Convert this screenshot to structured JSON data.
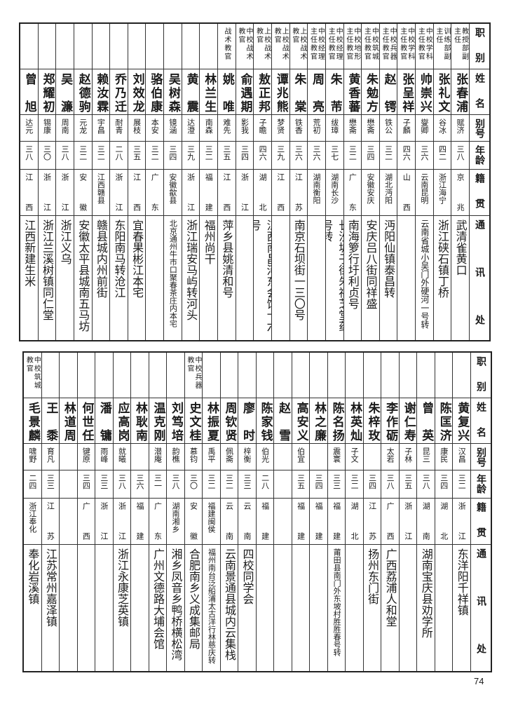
{
  "headers": {
    "role": "职别",
    "name": "姓名",
    "alias": "别号",
    "age": "年龄",
    "native": "籍贯",
    "address": "通讯处"
  },
  "page_number": "74",
  "top_table": [
    {
      "role": "教授部副主任",
      "name": "张春浦",
      "alias": "赋济",
      "age": "三八",
      "native": "京兆",
      "address": "武清雀黄口"
    },
    {
      "role": "训练部副主任",
      "name": "张礼文",
      "alias": "谷冰",
      "age": "四二",
      "native": "浙江海宁",
      "address": "浙江硖石镇丁桥"
    },
    {
      "role": "中校学科主任教官",
      "name": "帅崇兴",
      "alias": "燮卿",
      "age": "三六",
      "native": "云南昆明",
      "address": "云南省城小吴门外硬河一号转"
    },
    {
      "role": "中校学科主任教官",
      "name": "张呈祥",
      "alias": "子麟",
      "age": "四六",
      "native": "山西",
      "address": ""
    },
    {
      "role": "中校兵器主任教官",
      "name": "赵锷",
      "alias": "铁公",
      "age": "三二",
      "native": "湖北沔阳",
      "address": "沔阳仙镇泰昌转"
    },
    {
      "role": "中校筑城主任教官",
      "name": "朱勉方",
      "alias": "懋斋",
      "age": "三四",
      "native": "安徽安庆",
      "address": "安庆吕八街同祥盛"
    },
    {
      "role": "中校地形主任教官",
      "name": "黄香蕃",
      "alias": "懋斋",
      "age": "三二",
      "native": "广东",
      "address": "南海箩行圩利贞号"
    },
    {
      "role": "中校经理主任教官",
      "name": "朱芾",
      "alias": "绂璋",
      "age": "三七",
      "native": "湖南长沙",
      "address": "长沙坡子街朱福芝堂药号转"
    },
    {
      "role": "中校经理主任教官",
      "name": "周亮",
      "alias": "荒初",
      "age": "三六",
      "native": "湖南衡阳",
      "address": ""
    },
    {
      "role": "上校战术教官",
      "name": "朱棠",
      "alias": "铁香",
      "age": "三六",
      "native": "江苏",
      "address": "南京石坝街一三〇号"
    },
    {
      "role": "上校战术教官",
      "name": "谭兆熊",
      "alias": "梦贤",
      "age": "三九",
      "native": "江西",
      "address": ""
    },
    {
      "role": "上校战术教官",
      "name": "敖正邦",
      "alias": "子瞻",
      "age": "四六",
      "native": "湖北",
      "address": "江西南昌河东会馆十六号"
    },
    {
      "role": "中校战术教官",
      "name": "俞遇期",
      "alias": "影我",
      "age": "三四",
      "native": "浙江",
      "address": ""
    },
    {
      "role": "战术教官",
      "name": "姚唯",
      "alias": "难先",
      "age": "三五",
      "native": "江西",
      "address": "萍乡县姚清和号"
    },
    {
      "role": "",
      "name": "林兰生",
      "alias": "南森",
      "age": "三二",
      "native": "福建",
      "address": "福州尚干"
    },
    {
      "role": "",
      "name": "黄震",
      "alias": "达澄",
      "age": "三九",
      "native": "浙江",
      "address": "浙江瑞安马屿转河头"
    },
    {
      "role": "",
      "name": "吴树森",
      "alias": "镜涵",
      "age": "三四",
      "native": "安徽歙县",
      "address": "北京通州牛市口聚春茶庄内本宅"
    },
    {
      "role": "",
      "name": "骆伯康",
      "alias": "本安",
      "age": "三二",
      "native": "广东",
      "address": ""
    },
    {
      "role": "",
      "name": "刘效龙",
      "alias": "展枝",
      "age": "三五",
      "native": "江西",
      "address": "宜春果彬江本宅"
    },
    {
      "role": "",
      "name": "乔乃迁",
      "alias": "耐青",
      "age": "二八",
      "native": "浙江",
      "address": "东阳南马转沧江"
    },
    {
      "role": "",
      "name": "赖汝霖",
      "alias": "宇昌",
      "age": "三二",
      "native": "江西赣县",
      "address": "赣县城内州前街"
    },
    {
      "role": "",
      "name": "赵德驹",
      "alias": "元龙",
      "age": "三二",
      "native": "安徽",
      "address": "安徽太平县城南五马坊"
    },
    {
      "role": "",
      "name": "吴濂",
      "alias": "周南",
      "age": "三八",
      "native": "浙江",
      "address": "浙江义乌"
    },
    {
      "role": "",
      "name": "郑耀初",
      "alias": "锡康",
      "age": "三〇",
      "native": "浙江",
      "address": "浙江兰溪树镇同仁堂"
    },
    {
      "role": "",
      "name": "曾旭",
      "alias": "达元",
      "age": "三八",
      "native": "江西",
      "address": "江西新建生米"
    }
  ],
  "bottom_table": [
    {
      "role": "",
      "name": "黄复兴",
      "alias": "汉昌",
      "age": "三二",
      "native": "浙江",
      "address": "东洋阳千祥镇"
    },
    {
      "role": "",
      "name": "陈匡济",
      "alias": "康民",
      "age": "三四",
      "native": "湖北",
      "address": ""
    },
    {
      "role": "",
      "name": "曾英",
      "alias": "昆三",
      "age": "三八",
      "native": "湖南",
      "address": "湖南宝庆县劝学所"
    },
    {
      "role": "",
      "name": "谢仁寿",
      "alias": "子林",
      "age": "三五",
      "native": "浙江",
      "address": ""
    },
    {
      "role": "",
      "name": "李作砺",
      "alias": "太若",
      "age": "三八",
      "native": "广西",
      "address": "广西荔浦人和堂"
    },
    {
      "role": "",
      "name": "朱梓玫",
      "alias": "",
      "age": "三四",
      "native": "江苏",
      "address": "扬州东门街"
    },
    {
      "role": "",
      "name": "林英灿",
      "alias": "子文",
      "age": "三二",
      "native": "湖北",
      "address": ""
    },
    {
      "role": "",
      "name": "陈名扬",
      "alias": "震寰",
      "age": "三三",
      "native": "福建",
      "address": "莆田县南门外东坡村胜胜春号转"
    },
    {
      "role": "",
      "name": "林之廉",
      "alias": "",
      "age": "三四",
      "native": "福建",
      "address": ""
    },
    {
      "role": "",
      "name": "高安义",
      "alias": "伯宜",
      "age": "三五",
      "native": "福建",
      "address": ""
    },
    {
      "role": "",
      "name": "赵雪",
      "alias": "",
      "age": "",
      "native": "",
      "address": ""
    },
    {
      "role": "",
      "name": "陈家钱",
      "alias": "伯光",
      "age": "二八",
      "native": "福建",
      "address": ""
    },
    {
      "role": "",
      "name": "廖时",
      "alias": "梓衡",
      "age": "三三",
      "native": "云南",
      "address": "四校同学会"
    },
    {
      "role": "",
      "name": "周钦贤",
      "alias": "佩斋",
      "age": "三二",
      "native": "云南",
      "address": "云南景通县城内云集栈"
    },
    {
      "role": "",
      "name": "林振夏",
      "alias": "禹平",
      "age": "三二",
      "native": "福建闽侯",
      "address": "福州南台泛船浦太古洋行林慈庆转"
    },
    {
      "role": "中校兵器教官",
      "name": "史文桂",
      "alias": "慕钧",
      "age": "三〇",
      "native": "安徽",
      "address": "合肥南乡义成集邮局"
    },
    {
      "role": "",
      "name": "刘笃培",
      "alias": "韵樵",
      "age": "三八",
      "native": "湖南湘乡",
      "address": "湘乡凤音乡鸭桥横松湾"
    },
    {
      "role": "",
      "name": "温克刚",
      "alias": "潜庵",
      "age": "三一",
      "native": "广东",
      "address": "广州文德路大埔会馆"
    },
    {
      "role": "",
      "name": "林耿南",
      "alias": "",
      "age": "三六",
      "native": "福建",
      "address": ""
    },
    {
      "role": "",
      "name": "应高岗",
      "alias": "就曦",
      "age": "三八",
      "native": "浙江",
      "address": "浙江永康芝英镇"
    },
    {
      "role": "",
      "name": "潘镛",
      "alias": "雨峰",
      "age": "三三",
      "native": "浙江",
      "address": ""
    },
    {
      "role": "",
      "name": "何世任",
      "alias": "键原",
      "age": "三四",
      "native": "广西",
      "address": ""
    },
    {
      "role": "",
      "name": "林道周",
      "alias": "",
      "age": "",
      "native": "",
      "address": ""
    },
    {
      "role": "",
      "name": "王黍",
      "alias": "育凡",
      "age": "三三",
      "native": "江苏",
      "address": "江苏常州嘉泽镇"
    },
    {
      "role": "中校筑城教官",
      "name": "毛景麟",
      "alias": "啸野",
      "age": "二四",
      "native": "浙江奉化",
      "address": "奉化岩溪镇"
    }
  ]
}
